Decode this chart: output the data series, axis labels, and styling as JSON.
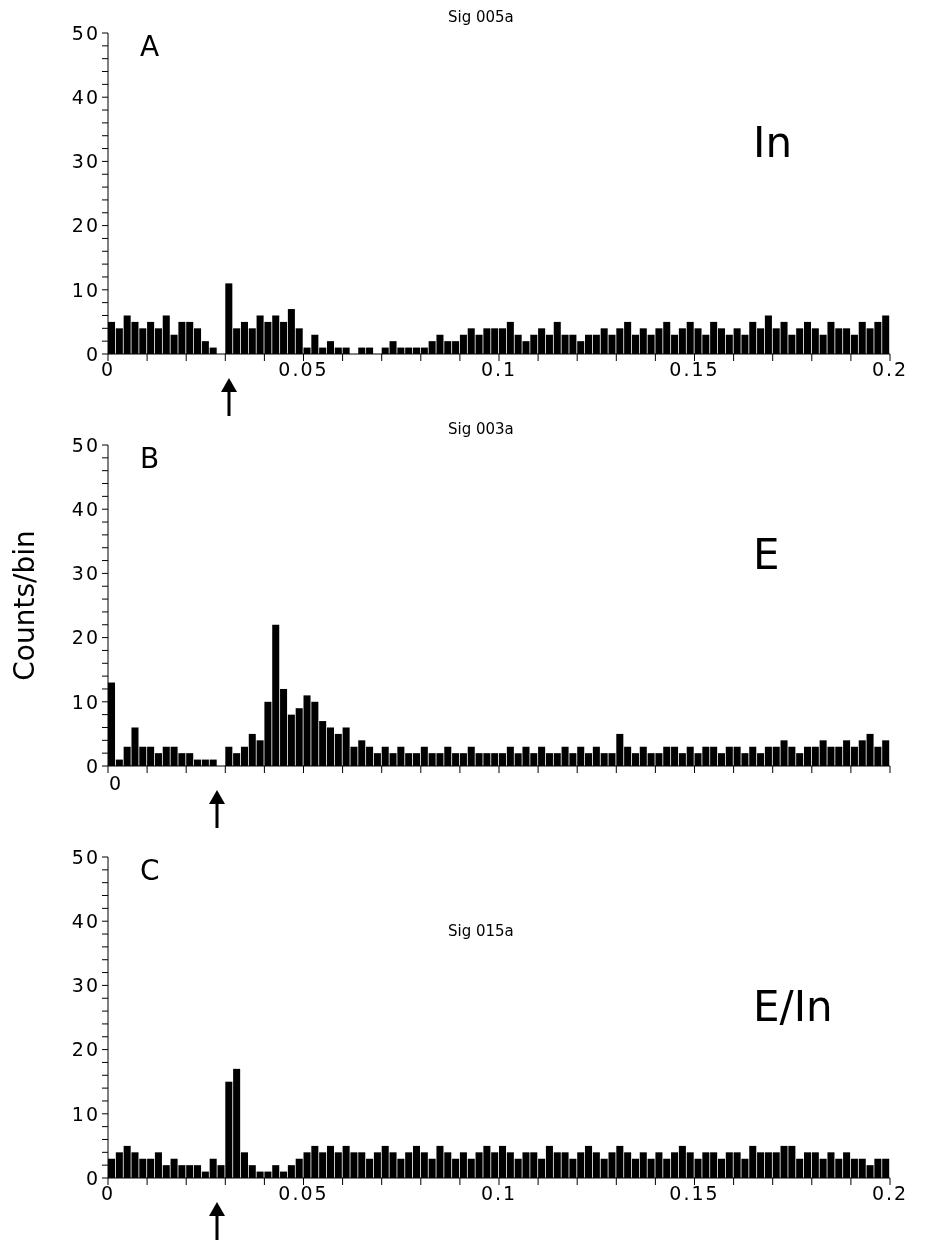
{
  "chart_data": [
    {
      "type": "histogram",
      "title": "Sig 005a",
      "annotations": [
        "A",
        "In"
      ],
      "color": "#000000",
      "bins": [
        0,
        0.002,
        0.004,
        0.006,
        0.008,
        0.01,
        0.012,
        0.014,
        0.016,
        0.018,
        0.02,
        0.022,
        0.024,
        0.026,
        0.028,
        0.03,
        0.032,
        0.034,
        0.036,
        0.038,
        0.04,
        0.042,
        0.044,
        0.046,
        0.048,
        0.05,
        0.052,
        0.054,
        0.056,
        0.058,
        0.06,
        0.062,
        0.064,
        0.066,
        0.068,
        0.07,
        0.072,
        0.074,
        0.076,
        0.078,
        0.08,
        0.082,
        0.084,
        0.086,
        0.088,
        0.09,
        0.092,
        0.094,
        0.096,
        0.098,
        0.1,
        0.102,
        0.104,
        0.106,
        0.108,
        0.11,
        0.112,
        0.114,
        0.116,
        0.118,
        0.12,
        0.122,
        0.124,
        0.126,
        0.128,
        0.13,
        0.132,
        0.134,
        0.136,
        0.138,
        0.14,
        0.142,
        0.144,
        0.146,
        0.148,
        0.15,
        0.152,
        0.154,
        0.156,
        0.158,
        0.16,
        0.162,
        0.164,
        0.166,
        0.168,
        0.17,
        0.172,
        0.174,
        0.176,
        0.178,
        0.18,
        0.182,
        0.184,
        0.186,
        0.188,
        0.19,
        0.192,
        0.194,
        0.196,
        0.198,
        0.2
      ],
      "values": [
        5,
        4,
        6,
        5,
        4,
        5,
        4,
        6,
        3,
        5,
        5,
        4,
        2,
        1,
        0,
        11,
        4,
        5,
        4,
        6,
        5,
        6,
        5,
        7,
        4,
        1,
        3,
        1,
        2,
        1,
        1,
        0,
        1,
        1,
        0,
        1,
        2,
        1,
        1,
        1,
        1,
        2,
        3,
        2,
        2,
        3,
        4,
        3,
        4,
        4,
        4,
        5,
        3,
        2,
        3,
        4,
        3,
        5,
        3,
        3,
        2,
        3,
        3,
        4,
        3,
        4,
        5,
        3,
        4,
        3,
        4,
        5,
        3,
        4,
        5,
        4,
        3,
        5,
        4,
        3,
        4,
        3,
        5,
        4,
        6,
        4,
        5,
        3,
        4,
        5,
        4,
        3,
        5,
        4,
        4,
        3,
        5,
        4,
        5,
        6
      ],
      "xlim": [
        0,
        0.2
      ],
      "xticks": [
        0,
        {
          "value": 0.01,
          "label": null
        },
        {
          "value": 0.02,
          "label": null
        },
        {
          "value": 0.03,
          "label": null
        },
        {
          "value": 0.04,
          "label": null
        },
        0.05,
        {
          "value": 0.06,
          "label": null
        },
        {
          "value": 0.07,
          "label": null
        },
        {
          "value": 0.08,
          "label": null
        },
        {
          "value": 0.09,
          "label": null
        },
        0.1,
        {
          "value": 0.11,
          "label": null
        },
        {
          "value": 0.12,
          "label": null
        },
        {
          "value": 0.13,
          "label": null
        },
        {
          "value": 0.14,
          "label": null
        },
        0.15,
        {
          "value": 0.16,
          "label": null
        },
        {
          "value": 0.17,
          "label": null
        },
        {
          "value": 0.18,
          "label": null
        },
        {
          "value": 0.19,
          "label": null
        },
        0.2
      ],
      "ylim": [
        0,
        50
      ],
      "yticks": [
        0,
        {
          "value": 2,
          "label": null
        },
        {
          "value": 4,
          "label": null
        },
        {
          "value": 6,
          "label": null
        },
        {
          "value": 8,
          "label": null
        },
        10,
        {
          "value": 12,
          "label": null
        },
        {
          "value": 14,
          "label": null
        },
        {
          "value": 16,
          "label": null
        },
        {
          "value": 18,
          "label": null
        },
        20,
        {
          "value": 22,
          "label": null
        },
        {
          "value": 24,
          "label": null
        },
        {
          "value": 26,
          "label": null
        },
        {
          "value": 28,
          "label": null
        },
        30,
        {
          "value": 32,
          "label": null
        },
        {
          "value": 34,
          "label": null
        },
        {
          "value": 36,
          "label": null
        },
        {
          "value": 38,
          "label": null
        },
        40,
        {
          "value": 42,
          "label": null
        },
        {
          "value": 44,
          "label": null
        },
        {
          "value": 46,
          "label": null
        },
        {
          "value": 48,
          "label": null
        },
        50
      ]
    },
    {
      "type": "histogram",
      "title": "Sig 003a",
      "ylabel": "Counts/bin",
      "annotations": [
        "B",
        "E",
        "0"
      ],
      "tick_labels": "y",
      "color": "#000000",
      "bins": [
        0,
        0.002,
        0.004,
        0.006,
        0.008,
        0.01,
        0.012,
        0.014,
        0.016,
        0.018,
        0.02,
        0.022,
        0.024,
        0.026,
        0.028,
        0.03,
        0.032,
        0.034,
        0.036,
        0.038,
        0.04,
        0.042,
        0.044,
        0.046,
        0.048,
        0.05,
        0.052,
        0.054,
        0.056,
        0.058,
        0.06,
        0.062,
        0.064,
        0.066,
        0.068,
        0.07,
        0.072,
        0.074,
        0.076,
        0.078,
        0.08,
        0.082,
        0.084,
        0.086,
        0.088,
        0.09,
        0.092,
        0.094,
        0.096,
        0.098,
        0.1,
        0.102,
        0.104,
        0.106,
        0.108,
        0.11,
        0.112,
        0.114,
        0.116,
        0.118,
        0.12,
        0.122,
        0.124,
        0.126,
        0.128,
        0.13,
        0.132,
        0.134,
        0.136,
        0.138,
        0.14,
        0.142,
        0.144,
        0.146,
        0.148,
        0.15,
        0.152,
        0.154,
        0.156,
        0.158,
        0.16,
        0.162,
        0.164,
        0.166,
        0.168,
        0.17,
        0.172,
        0.174,
        0.176,
        0.178,
        0.18,
        0.182,
        0.184,
        0.186,
        0.188,
        0.19,
        0.192,
        0.194,
        0.196,
        0.198,
        0.2
      ],
      "values": [
        13,
        1,
        3,
        6,
        3,
        3,
        2,
        3,
        3,
        2,
        2,
        1,
        1,
        1,
        0,
        3,
        2,
        3,
        5,
        4,
        10,
        22,
        12,
        8,
        9,
        11,
        10,
        7,
        6,
        5,
        6,
        3,
        4,
        3,
        2,
        3,
        2,
        3,
        2,
        2,
        3,
        2,
        2,
        3,
        2,
        2,
        3,
        2,
        2,
        2,
        2,
        3,
        2,
        3,
        2,
        3,
        2,
        2,
        3,
        2,
        3,
        2,
        3,
        2,
        2,
        5,
        3,
        2,
        3,
        2,
        2,
        3,
        3,
        2,
        3,
        2,
        3,
        3,
        2,
        3,
        3,
        2,
        3,
        2,
        3,
        3,
        4,
        3,
        2,
        3,
        3,
        4,
        3,
        3,
        4,
        3,
        4,
        5,
        3,
        4
      ],
      "xlim": [
        0,
        0.2
      ],
      "xticks": [
        0,
        {
          "value": 0.01,
          "label": null
        },
        {
          "value": 0.02,
          "label": null
        },
        {
          "value": 0.03,
          "label": null
        },
        {
          "value": 0.04,
          "label": null
        },
        0.05,
        {
          "value": 0.06,
          "label": null
        },
        {
          "value": 0.07,
          "label": null
        },
        {
          "value": 0.08,
          "label": null
        },
        {
          "value": 0.09,
          "label": null
        },
        0.1,
        {
          "value": 0.11,
          "label": null
        },
        {
          "value": 0.12,
          "label": null
        },
        {
          "value": 0.13,
          "label": null
        },
        {
          "value": 0.14,
          "label": null
        },
        0.15,
        {
          "value": 0.16,
          "label": null
        },
        {
          "value": 0.17,
          "label": null
        },
        {
          "value": 0.18,
          "label": null
        },
        {
          "value": 0.19,
          "label": null
        },
        0.2
      ],
      "ylim": [
        0,
        50
      ],
      "yticks": [
        0,
        {
          "value": 2,
          "label": null
        },
        {
          "value": 4,
          "label": null
        },
        {
          "value": 6,
          "label": null
        },
        {
          "value": 8,
          "label": null
        },
        10,
        {
          "value": 12,
          "label": null
        },
        {
          "value": 14,
          "label": null
        },
        {
          "value": 16,
          "label": null
        },
        {
          "value": 18,
          "label": null
        },
        20,
        {
          "value": 22,
          "label": null
        },
        {
          "value": 24,
          "label": null
        },
        {
          "value": 26,
          "label": null
        },
        {
          "value": 28,
          "label": null
        },
        30,
        {
          "value": 32,
          "label": null
        },
        {
          "value": 34,
          "label": null
        },
        {
          "value": 36,
          "label": null
        },
        {
          "value": 38,
          "label": null
        },
        40,
        {
          "value": 42,
          "label": null
        },
        {
          "value": 44,
          "label": null
        },
        {
          "value": 46,
          "label": null
        },
        {
          "value": 48,
          "label": null
        },
        50
      ]
    },
    {
      "type": "histogram",
      "title": "Sig 015a",
      "annotations": [
        "C",
        "E/In"
      ],
      "color": "#000000",
      "bins": [
        0,
        0.002,
        0.004,
        0.006,
        0.008,
        0.01,
        0.012,
        0.014,
        0.016,
        0.018,
        0.02,
        0.022,
        0.024,
        0.026,
        0.028,
        0.03,
        0.032,
        0.034,
        0.036,
        0.038,
        0.04,
        0.042,
        0.044,
        0.046,
        0.048,
        0.05,
        0.052,
        0.054,
        0.056,
        0.058,
        0.06,
        0.062,
        0.064,
        0.066,
        0.068,
        0.07,
        0.072,
        0.074,
        0.076,
        0.078,
        0.08,
        0.082,
        0.084,
        0.086,
        0.088,
        0.09,
        0.092,
        0.094,
        0.096,
        0.098,
        0.1,
        0.102,
        0.104,
        0.106,
        0.108,
        0.11,
        0.112,
        0.114,
        0.116,
        0.118,
        0.12,
        0.122,
        0.124,
        0.126,
        0.128,
        0.13,
        0.132,
        0.134,
        0.136,
        0.138,
        0.14,
        0.142,
        0.144,
        0.146,
        0.148,
        0.15,
        0.152,
        0.154,
        0.156,
        0.158,
        0.16,
        0.162,
        0.164,
        0.166,
        0.168,
        0.17,
        0.172,
        0.174,
        0.176,
        0.178,
        0.18,
        0.182,
        0.184,
        0.186,
        0.188,
        0.19,
        0.192,
        0.194,
        0.196,
        0.198,
        0.2
      ],
      "values": [
        3,
        4,
        5,
        4,
        3,
        3,
        4,
        2,
        3,
        2,
        2,
        2,
        1,
        3,
        2,
        15,
        17,
        4,
        2,
        1,
        1,
        2,
        1,
        2,
        3,
        4,
        5,
        4,
        5,
        4,
        5,
        4,
        4,
        3,
        4,
        5,
        4,
        3,
        4,
        5,
        4,
        3,
        5,
        4,
        3,
        4,
        3,
        4,
        5,
        4,
        5,
        4,
        3,
        4,
        4,
        3,
        5,
        4,
        4,
        3,
        4,
        5,
        4,
        3,
        4,
        5,
        4,
        3,
        4,
        3,
        4,
        3,
        4,
        5,
        4,
        3,
        4,
        4,
        3,
        4,
        4,
        3,
        5,
        4,
        4,
        4,
        5,
        5,
        3,
        4,
        4,
        3,
        4,
        3,
        4,
        3,
        3,
        2,
        3,
        3
      ],
      "xlim": [
        0,
        0.2
      ],
      "xticks": [
        0,
        {
          "value": 0.01,
          "label": null
        },
        {
          "value": 0.02,
          "label": null
        },
        {
          "value": 0.03,
          "label": null
        },
        {
          "value": 0.04,
          "label": null
        },
        0.05,
        {
          "value": 0.06,
          "label": null
        },
        {
          "value": 0.07,
          "label": null
        },
        {
          "value": 0.08,
          "label": null
        },
        {
          "value": 0.09,
          "label": null
        },
        0.1,
        {
          "value": 0.11,
          "label": null
        },
        {
          "value": 0.12,
          "label": null
        },
        {
          "value": 0.13,
          "label": null
        },
        {
          "value": 0.14,
          "label": null
        },
        0.15,
        {
          "value": 0.16,
          "label": null
        },
        {
          "value": 0.17,
          "label": null
        },
        {
          "value": 0.18,
          "label": null
        },
        {
          "value": 0.19,
          "label": null
        },
        0.2
      ],
      "ylim": [
        0,
        50
      ],
      "yticks": [
        0,
        {
          "value": 2,
          "label": null
        },
        {
          "value": 4,
          "label": null
        },
        {
          "value": 6,
          "label": null
        },
        {
          "value": 8,
          "label": null
        },
        10,
        {
          "value": 12,
          "label": null
        },
        {
          "value": 14,
          "label": null
        },
        {
          "value": 16,
          "label": null
        },
        {
          "value": 18,
          "label": null
        },
        20,
        {
          "value": 22,
          "label": null
        },
        {
          "value": 24,
          "label": null
        },
        {
          "value": 26,
          "label": null
        },
        {
          "value": 28,
          "label": null
        },
        30,
        {
          "value": 32,
          "label": null
        },
        {
          "value": 34,
          "label": null
        },
        {
          "value": 36,
          "label": null
        },
        {
          "value": 38,
          "label": null
        },
        40,
        {
          "value": 42,
          "label": null
        },
        {
          "value": 44,
          "label": null
        },
        {
          "value": 46,
          "label": null
        },
        {
          "value": 48,
          "label": null
        },
        50
      ]
    }
  ]
}
